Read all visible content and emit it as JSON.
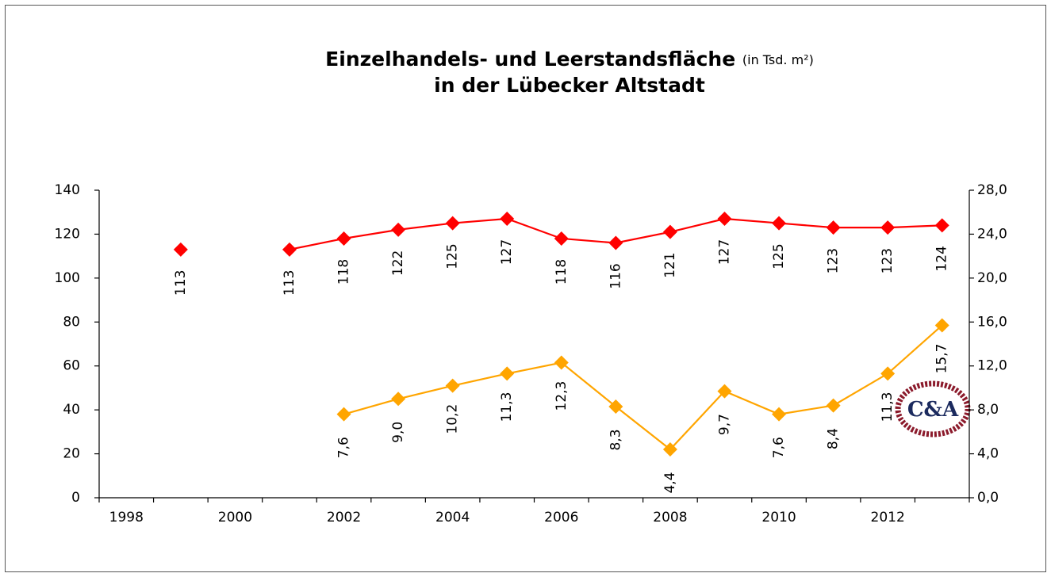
{
  "title_line1": "Einzelhandels- und Leerstandsfläche",
  "title_units": "(in Tsd. m²)",
  "title_line2": "in der Lübecker Altstadt",
  "logo_text": "C&A",
  "chart_data": {
    "type": "line",
    "categories": [
      "1998",
      null,
      "2000",
      null,
      "2002",
      null,
      "2004",
      null,
      "2006",
      null,
      "2008",
      null,
      "2010",
      null,
      "2012",
      null
    ],
    "series": [
      {
        "color": "#ff0000",
        "values": [
          null,
          113,
          null,
          113,
          118,
          122,
          125,
          127,
          118,
          116,
          121,
          127,
          125,
          123,
          123,
          124
        ]
      },
      {
        "color": "#ffa500",
        "axis": "y2",
        "values": [
          null,
          null,
          null,
          null,
          7.6,
          9.0,
          10.2,
          11.3,
          12.3,
          8.3,
          4.4,
          9.7,
          7.6,
          8.4,
          11.3,
          15.7
        ],
        "value_labels": [
          null,
          null,
          null,
          null,
          "7,6",
          "9,0",
          "10,2",
          "11,3",
          "12,3",
          "8,3",
          "4,4",
          "9,7",
          "7,6",
          "8,4",
          "11,3",
          "15,7"
        ]
      }
    ],
    "ylim": [
      0,
      140
    ],
    "yticks": [
      0,
      20,
      40,
      60,
      80,
      100,
      120,
      140
    ],
    "y2lim": [
      0,
      28
    ],
    "y2ticks": [
      {
        "value": 0,
        "label": "0,0"
      },
      {
        "value": 4,
        "label": "4,0"
      },
      {
        "value": 8,
        "label": "8,0"
      },
      {
        "value": 12,
        "label": "12,0"
      },
      {
        "value": 16,
        "label": "16,0"
      },
      {
        "value": 20,
        "label": "20,0"
      },
      {
        "value": 24,
        "label": "24,0"
      },
      {
        "value": 28,
        "label": "28,0"
      }
    ],
    "grid": false
  }
}
